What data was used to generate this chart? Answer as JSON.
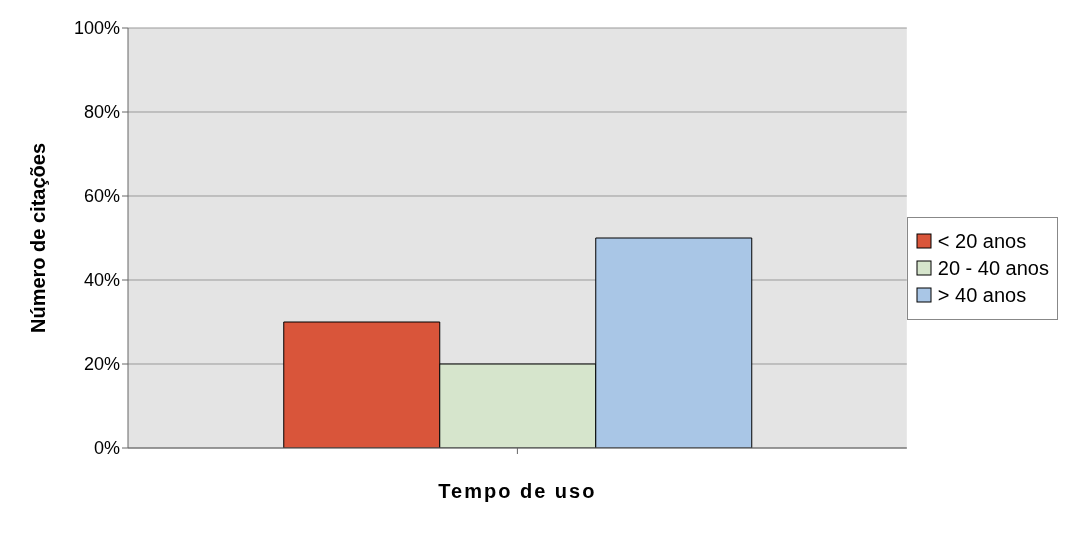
{
  "chart_data": {
    "type": "bar",
    "xlabel": "Tempo de uso",
    "ylabel": "Número de citações",
    "categories": [
      null
    ],
    "series": [
      {
        "name": "< 20 anos",
        "color": "#d9553a",
        "values": [
          30
        ]
      },
      {
        "name": "20 - 40 anos",
        "color": "#d6e5cc",
        "values": [
          20
        ]
      },
      {
        "name": "> 40 anos",
        "color": "#a9c6e6",
        "values": [
          50
        ]
      }
    ],
    "ylim": [
      0,
      100
    ],
    "yticks": [
      {
        "value": 0,
        "label": "0%"
      },
      {
        "value": 20,
        "label": "20%"
      },
      {
        "value": 40,
        "label": "40%"
      },
      {
        "value": 60,
        "label": "60%"
      },
      {
        "value": 80,
        "label": "80%"
      },
      {
        "value": 100,
        "label": "100%"
      }
    ],
    "grid": "y",
    "legend": "right"
  }
}
